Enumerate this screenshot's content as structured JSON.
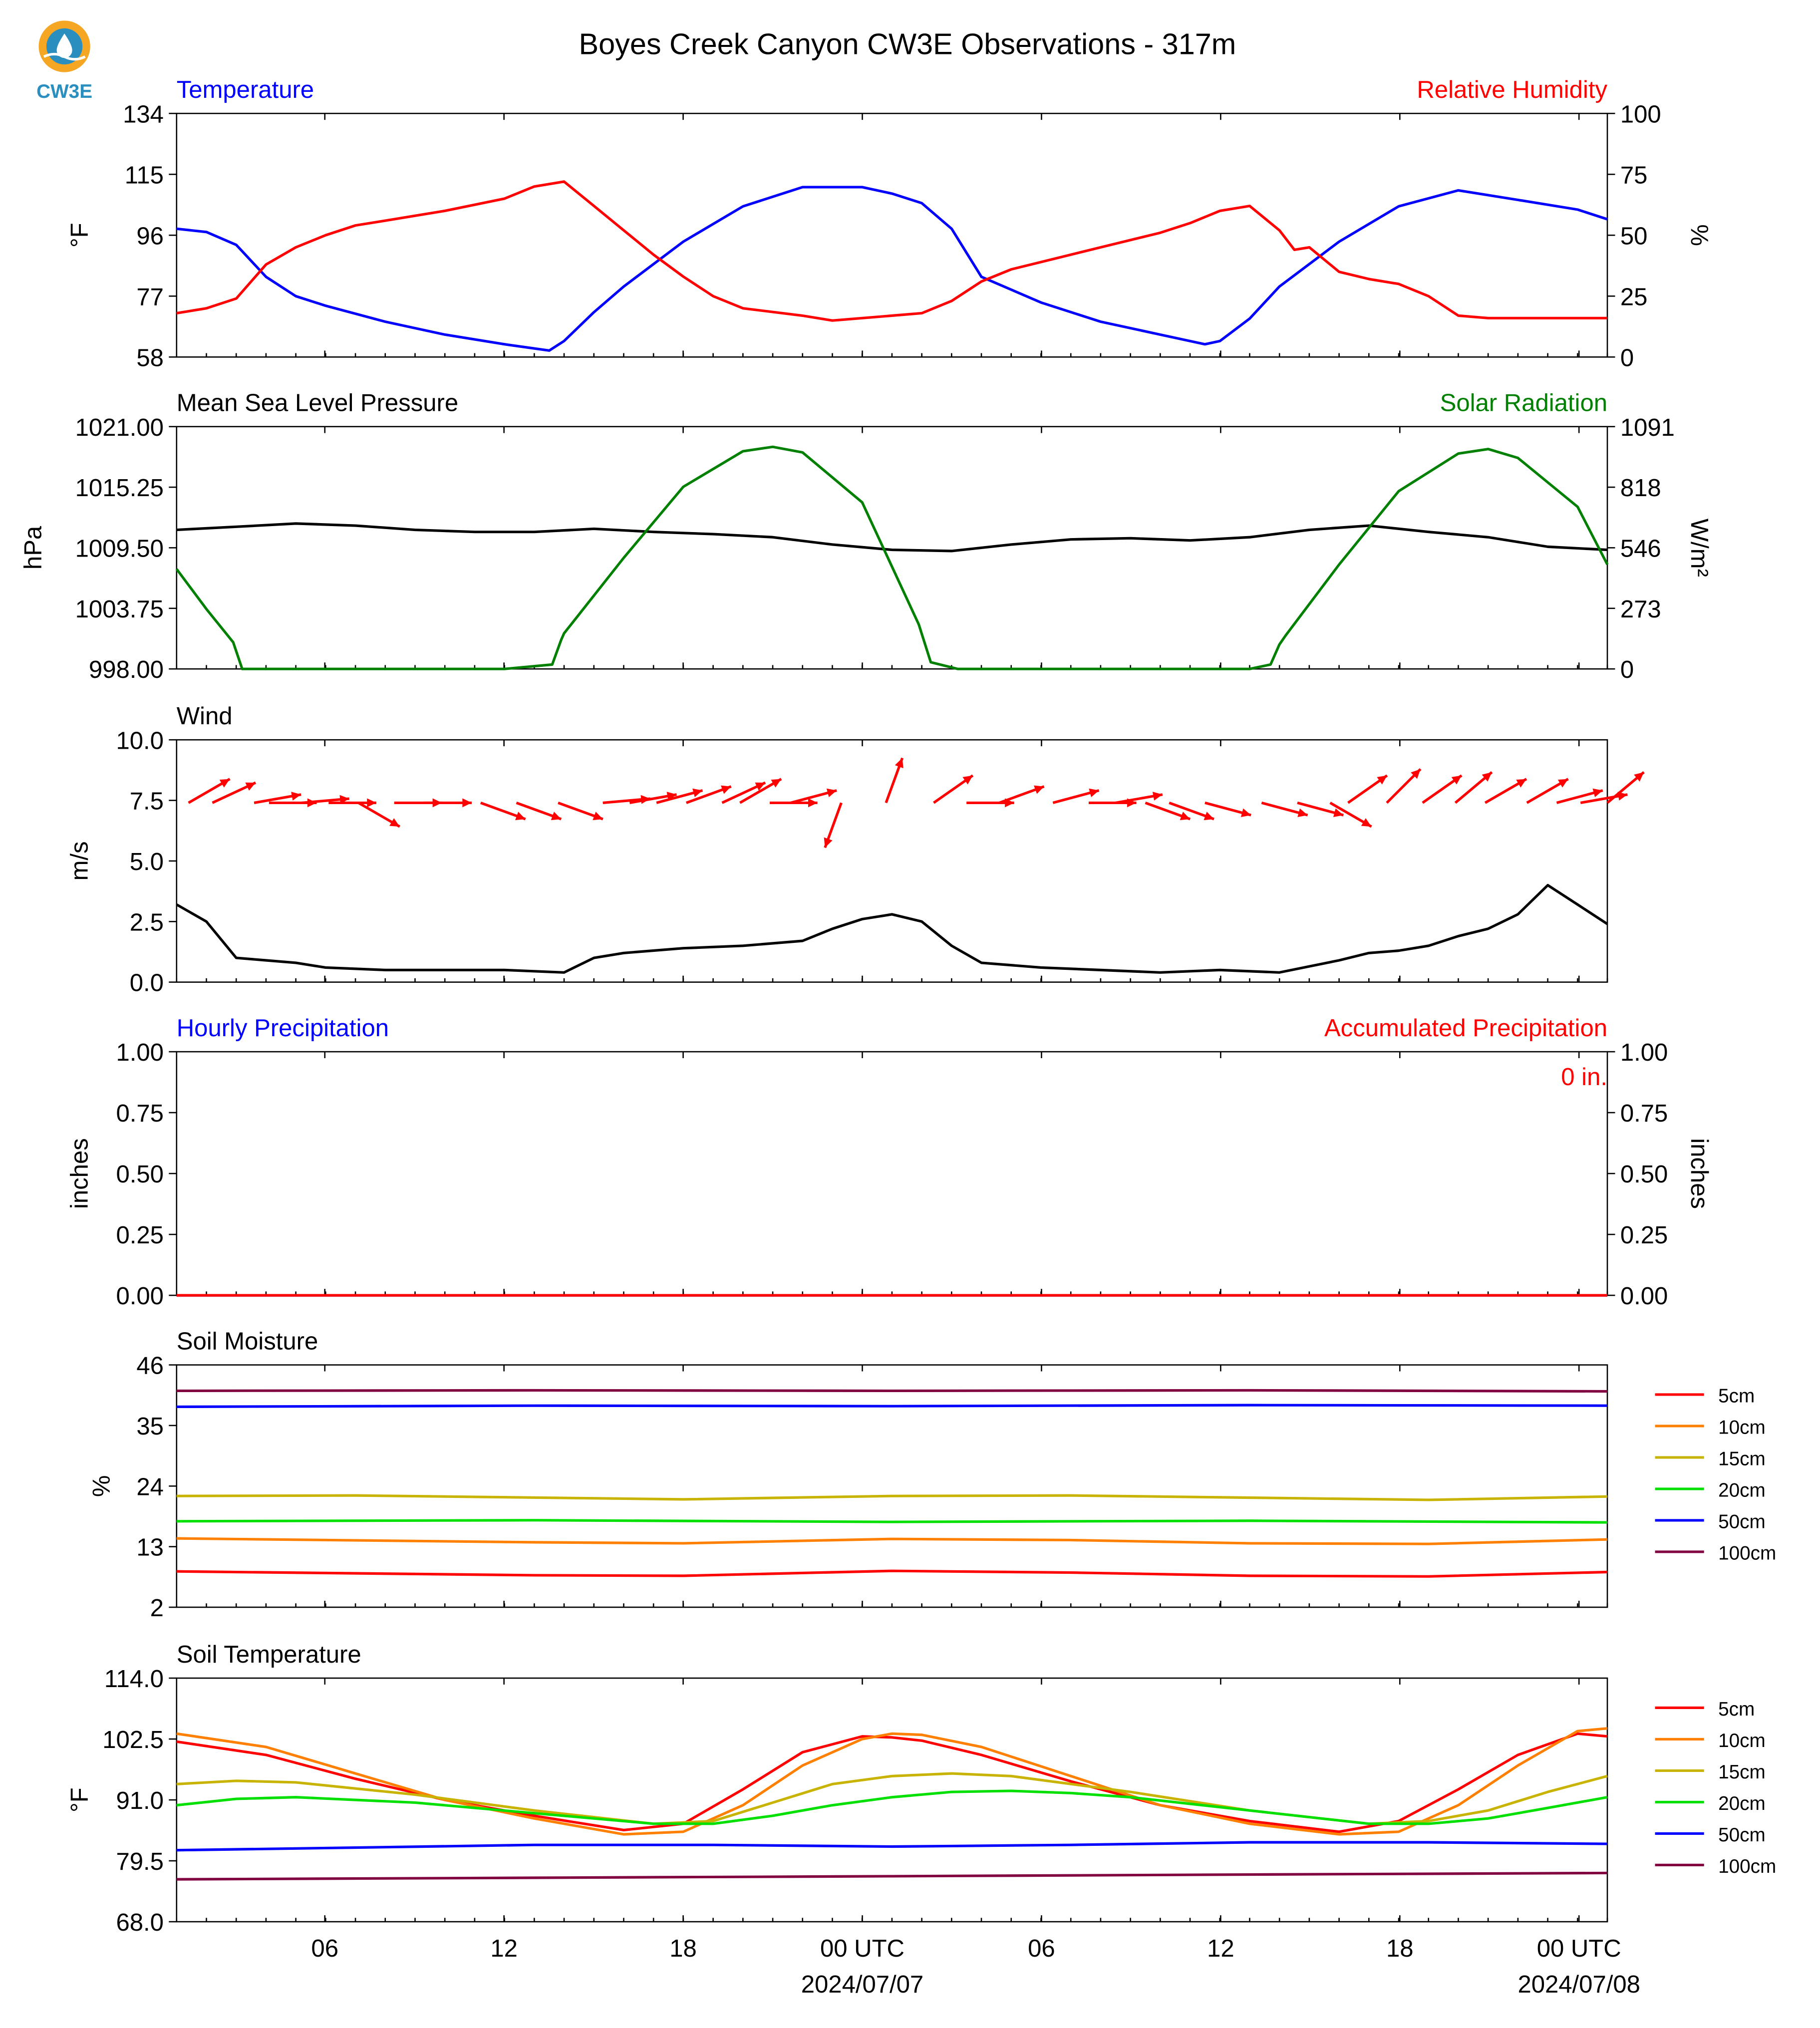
{
  "title": "Boyes Creek Canyon CW3E Observations - 317m",
  "logo": {
    "text": "CW3E",
    "icon": "cw3e-logo-icon",
    "colors": {
      "orange": "#f5a623",
      "teal": "#2a8fbf"
    }
  },
  "x_axis": {
    "tick_labels": [
      "06",
      "12",
      "18",
      "00 UTC",
      "06",
      "12",
      "18",
      "00 UTC"
    ],
    "date_labels": [
      "2024/07/07",
      "2024/07/08"
    ]
  },
  "colors": {
    "temperature": "#0000ff",
    "humidity": "#ff0000",
    "pressure": "#000000",
    "solar": "#008000",
    "wind": "#000000",
    "wind_arrows": "#ff0000",
    "precip_hourly": "#0000ff",
    "precip_accum": "#ff0000",
    "depth_5cm": "#ff0000",
    "depth_10cm": "#ff8000",
    "depth_15cm": "#c8b400",
    "depth_20cm": "#00e000",
    "depth_50cm": "#0000ff",
    "depth_100cm": "#800040"
  },
  "chart_data": [
    {
      "id": "temp_rh",
      "type": "line",
      "title_left": "Temperature",
      "title_right": "Relative Humidity",
      "ylabel_left": "°F",
      "ylabel_right": "%",
      "ylim": [
        58,
        134
      ],
      "yticks": [
        "58",
        "77",
        "96",
        "115",
        "134"
      ],
      "y2lim": [
        0,
        100
      ],
      "y2ticks": [
        "0",
        "25",
        "50",
        "75",
        "100"
      ],
      "xlim": [
        1,
        49
      ],
      "series": [
        {
          "axis": "left",
          "color_key": "temperature",
          "x": [
            1,
            2,
            3,
            4,
            5,
            6,
            8,
            10,
            12,
            13.5,
            14,
            15,
            16,
            18,
            20,
            22,
            24,
            25,
            26,
            27,
            28,
            30,
            32,
            34,
            35.5,
            36,
            37,
            38,
            40,
            42,
            44,
            46,
            48,
            49
          ],
          "values": [
            98,
            97,
            93,
            83,
            77,
            74,
            69,
            65,
            62,
            60,
            63,
            72,
            80,
            94,
            105,
            111,
            111,
            109,
            106,
            98,
            83,
            75,
            69,
            65,
            62,
            63,
            70,
            80,
            94,
            105,
            110,
            107,
            104,
            101
          ]
        },
        {
          "axis": "right",
          "color_key": "humidity",
          "x": [
            1,
            2,
            3,
            4,
            5,
            6,
            7,
            8,
            10,
            12,
            13,
            14,
            15,
            16,
            17,
            18,
            19,
            20,
            22,
            23,
            24,
            25,
            26,
            27,
            28,
            29,
            30,
            32,
            34,
            35,
            36,
            37,
            38,
            38.5,
            39,
            40,
            41,
            42,
            43,
            44,
            45,
            46,
            48,
            49
          ],
          "values": [
            18,
            20,
            24,
            38,
            45,
            50,
            54,
            56,
            60,
            65,
            70,
            72,
            62,
            52,
            42,
            33,
            25,
            20,
            17,
            15,
            16,
            17,
            18,
            23,
            31,
            36,
            39,
            45,
            51,
            55,
            60,
            62,
            52,
            44,
            45,
            35,
            32,
            30,
            25,
            17,
            16,
            16,
            16,
            16
          ]
        }
      ]
    },
    {
      "id": "pressure_solar",
      "type": "line",
      "title_left": "Mean Sea Level Pressure",
      "title_right": "Solar Radiation",
      "ylabel_left": "hPa",
      "ylabel_right": "W/m²",
      "ylim": [
        998,
        1021
      ],
      "yticks": [
        "998.00",
        "1003.75",
        "1009.50",
        "1015.25",
        "1021.00"
      ],
      "y2lim": [
        0,
        1091
      ],
      "y2ticks": [
        "0",
        "273",
        "546",
        "818",
        "1091"
      ],
      "xlim": [
        1,
        49
      ],
      "series": [
        {
          "axis": "left",
          "color_key": "pressure",
          "x": [
            1,
            3,
            5,
            7,
            9,
            11,
            13,
            15,
            17,
            19,
            21,
            23,
            25,
            27,
            29,
            31,
            33,
            35,
            37,
            39,
            41,
            43,
            45,
            47,
            49
          ],
          "values": [
            1011.2,
            1011.5,
            1011.8,
            1011.6,
            1011.2,
            1011.0,
            1011.0,
            1011.3,
            1011.0,
            1010.8,
            1010.5,
            1009.8,
            1009.3,
            1009.2,
            1009.8,
            1010.3,
            1010.4,
            1010.2,
            1010.5,
            1011.2,
            1011.6,
            1011.0,
            1010.5,
            1009.6,
            1009.3
          ]
        },
        {
          "axis": "right",
          "color_key": "solar",
          "x": [
            1,
            2,
            2.9,
            3.2,
            5,
            12,
            13.6,
            13.9,
            14,
            16,
            18,
            20,
            21,
            22,
            24,
            25.9,
            26.3,
            27.2,
            28,
            37,
            37.7,
            38,
            38.2,
            40,
            42,
            44,
            45,
            46,
            48,
            49
          ],
          "values": [
            450,
            270,
            120,
            0,
            0,
            0,
            20,
            130,
            160,
            500,
            820,
            980,
            1000,
            975,
            750,
            200,
            30,
            0,
            0,
            0,
            20,
            110,
            150,
            470,
            800,
            970,
            990,
            950,
            730,
            470
          ]
        }
      ]
    },
    {
      "id": "wind",
      "type": "line",
      "title_left": "Wind",
      "ylabel_left": "m/s",
      "ylim": [
        0,
        10
      ],
      "yticks": [
        "0.0",
        "2.5",
        "5.0",
        "7.5",
        "10.0"
      ],
      "xlim": [
        1,
        49
      ],
      "series": [
        {
          "axis": "left",
          "color_key": "wind",
          "x": [
            1,
            2,
            3,
            4,
            5,
            6,
            8,
            10,
            12,
            14,
            15,
            16,
            18,
            20,
            22,
            23,
            24,
            25,
            26,
            27,
            28,
            30,
            32,
            34,
            36,
            38,
            40,
            41,
            42,
            43,
            44,
            45,
            46,
            47,
            48,
            49
          ],
          "values": [
            3.2,
            2.5,
            1.0,
            0.9,
            0.8,
            0.6,
            0.5,
            0.5,
            0.5,
            0.4,
            1.0,
            1.2,
            1.4,
            1.5,
            1.7,
            2.2,
            2.6,
            2.8,
            2.5,
            1.5,
            0.8,
            0.6,
            0.5,
            0.4,
            0.5,
            0.4,
            0.9,
            1.2,
            1.3,
            1.5,
            1.9,
            2.2,
            2.8,
            4.0,
            3.2,
            2.4
          ]
        }
      ],
      "barbs": {
        "y": 7.4,
        "x": [
          1.4,
          2.2,
          3.6,
          4.1,
          5.2,
          6.1,
          7.1,
          8.3,
          9.3,
          11.2,
          12.4,
          13.8,
          15.3,
          16.2,
          17.1,
          18.1,
          19.3,
          19.9,
          20.9,
          21.6,
          23.3,
          24.8,
          26.4,
          27.5,
          28.6,
          30.4,
          31.6,
          32.5,
          33.5,
          34.3,
          35.5,
          37.4,
          38.6,
          39.7,
          40.3,
          41.6,
          42.8,
          43.9,
          44.9,
          46.3,
          47.3,
          48.1,
          49.0
        ],
        "angle_deg": [
          -30,
          -25,
          -10,
          0,
          -5,
          0,
          30,
          0,
          0,
          20,
          20,
          20,
          -5,
          -10,
          -15,
          -20,
          -25,
          -30,
          0,
          -15,
          110,
          -70,
          -35,
          0,
          -20,
          -15,
          0,
          -10,
          20,
          20,
          15,
          15,
          15,
          30,
          -35,
          -45,
          -35,
          -40,
          -30,
          -30,
          -15,
          -10,
          -40
        ],
        "len": 1.6
      }
    },
    {
      "id": "precipitation",
      "type": "line",
      "title_left": "Hourly Precipitation",
      "title_right": "Accumulated Precipitation",
      "ylabel_left": "inches",
      "ylabel_right": "inches",
      "ylim": [
        0,
        1
      ],
      "yticks": [
        "0.00",
        "0.25",
        "0.50",
        "0.75",
        "1.00"
      ],
      "y2lim": [
        0,
        1
      ],
      "y2ticks": [
        "0.00",
        "0.25",
        "0.50",
        "0.75",
        "1.00"
      ],
      "xlim": [
        1,
        49
      ],
      "annotation": "0 in.",
      "series": [
        {
          "axis": "left",
          "color_key": "precip_hourly",
          "x": [
            1,
            49
          ],
          "values": [
            0,
            0
          ]
        },
        {
          "axis": "right",
          "color_key": "precip_accum",
          "x": [
            1,
            49
          ],
          "values": [
            0,
            0
          ]
        }
      ]
    },
    {
      "id": "soil_moisture",
      "type": "line",
      "title_left": "Soil Moisture",
      "ylabel_left": "%",
      "ylim": [
        2,
        46
      ],
      "yticks": [
        "2",
        "13",
        "24",
        "35",
        "46"
      ],
      "xlim": [
        1,
        49
      ],
      "legend": [
        "5cm",
        "10cm",
        "15cm",
        "20cm",
        "50cm",
        "100cm"
      ],
      "series": [
        {
          "name": "5cm",
          "color_key": "depth_5cm",
          "x": [
            1,
            13,
            18,
            25,
            31,
            37,
            43,
            49
          ],
          "values": [
            8.5,
            7.8,
            7.7,
            8.6,
            8.3,
            7.7,
            7.6,
            8.4
          ]
        },
        {
          "name": "10cm",
          "color_key": "depth_10cm",
          "x": [
            1,
            13,
            18,
            25,
            31,
            37,
            43,
            49
          ],
          "values": [
            14.5,
            13.8,
            13.6,
            14.4,
            14.2,
            13.6,
            13.5,
            14.3
          ]
        },
        {
          "name": "15cm",
          "color_key": "depth_15cm",
          "x": [
            1,
            7,
            18,
            25,
            31,
            37,
            43,
            49
          ],
          "values": [
            22.2,
            22.3,
            21.6,
            22.2,
            22.3,
            21.9,
            21.5,
            22.1
          ]
        },
        {
          "name": "20cm",
          "color_key": "depth_20cm",
          "x": [
            1,
            13,
            25,
            37,
            49
          ],
          "values": [
            17.6,
            17.8,
            17.5,
            17.7,
            17.4
          ]
        },
        {
          "name": "50cm",
          "color_key": "depth_50cm",
          "x": [
            1,
            13,
            25,
            37,
            49
          ],
          "values": [
            38.4,
            38.6,
            38.5,
            38.7,
            38.6
          ]
        },
        {
          "name": "100cm",
          "color_key": "depth_100cm",
          "x": [
            1,
            13,
            25,
            37,
            49
          ],
          "values": [
            41.3,
            41.4,
            41.3,
            41.4,
            41.2
          ]
        }
      ]
    },
    {
      "id": "soil_temperature",
      "type": "line",
      "title_left": "Soil Temperature",
      "ylabel_left": "°F",
      "ylim": [
        68,
        114
      ],
      "yticks": [
        "68.0",
        "79.5",
        "91.0",
        "102.5",
        "114.0"
      ],
      "xlim": [
        1,
        49
      ],
      "legend": [
        "5cm",
        "10cm",
        "15cm",
        "20cm",
        "50cm",
        "100cm"
      ],
      "series": [
        {
          "name": "5cm",
          "color_key": "depth_5cm",
          "x": [
            1,
            4,
            7,
            10,
            13,
            16,
            18,
            20,
            22,
            24,
            25,
            26,
            28,
            31,
            34,
            37,
            40,
            42,
            44,
            46,
            48,
            49
          ],
          "values": [
            102.0,
            99.5,
            95.0,
            91.0,
            88.0,
            85.3,
            86.5,
            93.0,
            100.0,
            103.0,
            102.8,
            102.2,
            99.5,
            94.5,
            90.0,
            87.0,
            85.0,
            87.0,
            93.0,
            99.5,
            103.5,
            103.0
          ]
        },
        {
          "name": "10cm",
          "color_key": "depth_10cm",
          "x": [
            1,
            4,
            7,
            10,
            13,
            16,
            18,
            20,
            22,
            24,
            25,
            26,
            28,
            31,
            34,
            37,
            40,
            42,
            44,
            46,
            48,
            49
          ],
          "values": [
            103.5,
            101.0,
            96.0,
            91.0,
            87.5,
            84.5,
            85.0,
            90.0,
            97.5,
            102.5,
            103.5,
            103.3,
            101.0,
            95.5,
            90.0,
            86.5,
            84.5,
            85.0,
            90.0,
            97.5,
            104.0,
            104.5
          ]
        },
        {
          "name": "15cm",
          "color_key": "depth_15cm",
          "x": [
            1,
            3,
            5,
            9,
            13,
            17,
            19,
            21,
            23,
            25,
            27,
            29,
            33,
            37,
            41,
            43,
            45,
            47,
            49
          ],
          "values": [
            94.0,
            94.6,
            94.3,
            92.0,
            89.0,
            86.5,
            87.0,
            90.5,
            94.0,
            95.5,
            96.0,
            95.5,
            92.5,
            89.0,
            86.5,
            87.0,
            89.0,
            92.5,
            95.5
          ]
        },
        {
          "name": "20cm",
          "color_key": "depth_20cm",
          "x": [
            1,
            3,
            5,
            9,
            13,
            17,
            19,
            21,
            23,
            25,
            27,
            29,
            31,
            33,
            37,
            41,
            43,
            45,
            47,
            49
          ],
          "values": [
            90.0,
            91.2,
            91.5,
            90.5,
            88.5,
            86.5,
            86.5,
            88.0,
            90.0,
            91.5,
            92.5,
            92.7,
            92.3,
            91.5,
            89.0,
            86.5,
            86.5,
            87.5,
            89.5,
            91.5
          ]
        },
        {
          "name": "50cm",
          "color_key": "depth_50cm",
          "x": [
            1,
            7,
            13,
            19,
            25,
            31,
            37,
            43,
            49
          ],
          "values": [
            81.5,
            82.0,
            82.5,
            82.5,
            82.2,
            82.5,
            83.0,
            83.0,
            82.7
          ]
        },
        {
          "name": "100cm",
          "color_key": "depth_100cm",
          "x": [
            1,
            13,
            25,
            37,
            49
          ],
          "values": [
            76.0,
            76.3,
            76.6,
            76.9,
            77.2
          ]
        }
      ]
    }
  ]
}
